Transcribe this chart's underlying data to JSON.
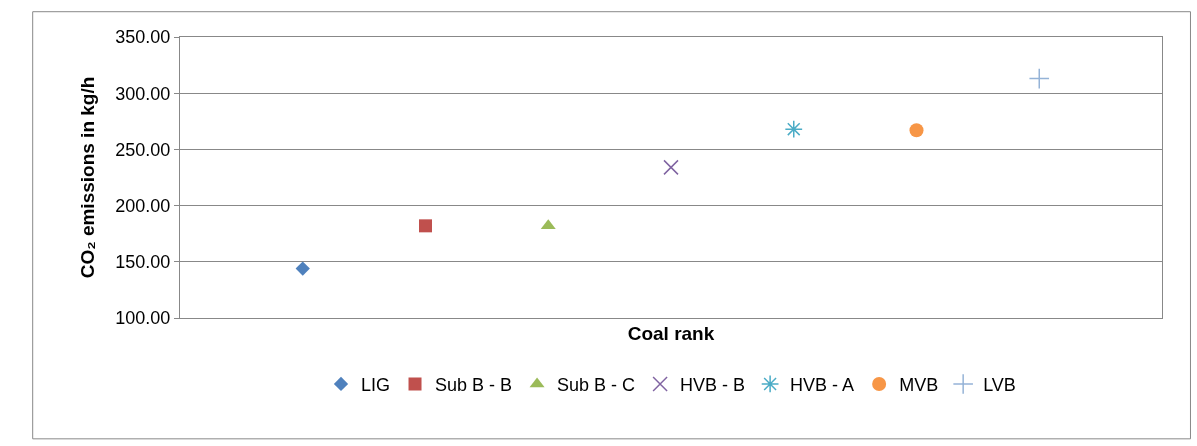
{
  "chart_data": {
    "type": "scatter",
    "xlabel": "Coal rank",
    "ylabel": "CO₂ emissions in kg/h",
    "categories": [
      null,
      null,
      null,
      null,
      null,
      null,
      null
    ],
    "series": [
      {
        "name": "LIG",
        "color": "#4f81bd",
        "marker": "diamond",
        "values": [
          144,
          null,
          null,
          null,
          null,
          null,
          null
        ]
      },
      {
        "name": "Sub B - B",
        "color": "#c0504d",
        "marker": "square",
        "values": [
          null,
          182,
          null,
          null,
          null,
          null,
          null
        ]
      },
      {
        "name": "Sub B - C",
        "color": "#9bbb59",
        "marker": "triangle",
        "values": [
          null,
          null,
          182,
          null,
          null,
          null,
          null
        ]
      },
      {
        "name": "HVB - B",
        "color": "#8064a2",
        "marker": "x",
        "values": [
          null,
          null,
          null,
          234,
          null,
          null,
          null
        ]
      },
      {
        "name": "HVB - A",
        "color": "#4bacc6",
        "marker": "cross",
        "values": [
          null,
          null,
          null,
          null,
          268,
          null,
          null
        ]
      },
      {
        "name": "MVB",
        "color": "#f79646",
        "marker": "circle",
        "values": [
          null,
          null,
          null,
          null,
          null,
          267,
          null
        ]
      },
      {
        "name": "LVB",
        "color": "#95b3d7",
        "marker": "plus",
        "values": [
          null,
          null,
          null,
          null,
          null,
          null,
          313
        ]
      }
    ],
    "ylim": [
      100,
      350
    ],
    "yticks": [
      {
        "value": 100,
        "label": "100.00"
      },
      {
        "value": 150,
        "label": "150.00"
      },
      {
        "value": 200,
        "label": "200.00"
      },
      {
        "value": 250,
        "label": "250.00"
      },
      {
        "value": 300,
        "label": "300.00"
      },
      {
        "value": 350,
        "label": "350.00"
      }
    ],
    "grid": "y",
    "legend": "bottom",
    "tick_labels": "y"
  }
}
